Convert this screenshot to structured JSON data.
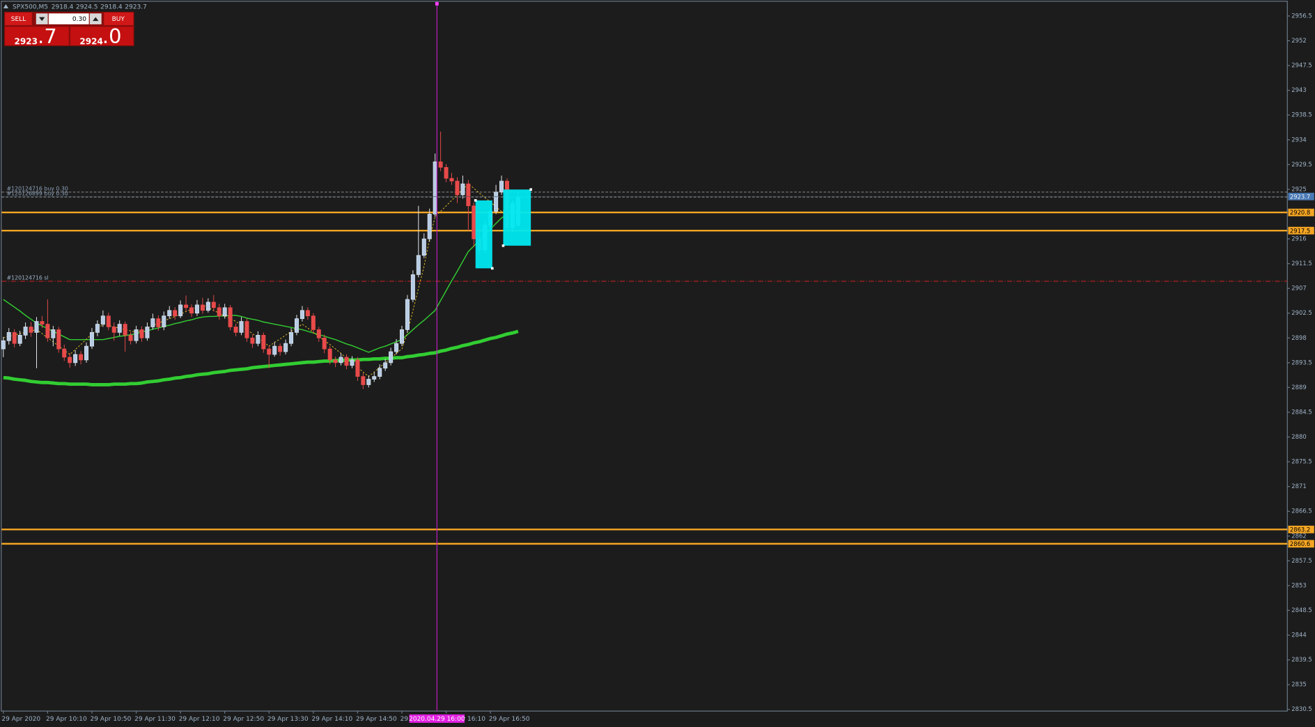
{
  "header": {
    "symbol": "SPX500,M5"
  },
  "trade_panel": {
    "sell": "SELL",
    "lot": "0.30",
    "buy": "BUY",
    "bid_main": "2923",
    "bid_frac": ".7",
    "ask_main": "2924",
    "ask_frac": ".0"
  },
  "chart_data": {
    "type": "candlestick",
    "categories": [
      "29 Apr 2020",
      null,
      null,
      null,
      null,
      null,
      null,
      null,
      "29 Apr 10:10",
      null,
      null,
      null,
      null,
      null,
      null,
      null,
      "29 Apr 10:50",
      null,
      null,
      null,
      null,
      null,
      null,
      null,
      "29 Apr 11:30",
      null,
      null,
      null,
      null,
      null,
      null,
      null,
      "29 Apr 12:10",
      null,
      null,
      null,
      null,
      null,
      null,
      null,
      "29 Apr 12:50",
      null,
      null,
      null,
      null,
      null,
      null,
      null,
      "29 Apr 13:30",
      null,
      null,
      null,
      null,
      null,
      null,
      null,
      "29 Apr 14:10",
      null,
      null,
      null,
      null,
      null,
      null,
      null,
      "29 Apr 14:50",
      null,
      null,
      null,
      null,
      null,
      null,
      null,
      "29 Apr 15:30",
      null,
      null,
      null,
      null,
      null,
      null,
      null,
      "29 Apr 16:10",
      null,
      null,
      null,
      null,
      null,
      null,
      null,
      "29 Apr 16:50",
      null,
      null,
      null,
      null,
      null
    ],
    "candles": [
      [
        2896,
        2898.2,
        2894.5,
        2897.5
      ],
      [
        2897.5,
        2899.8,
        2896.8,
        2899
      ],
      [
        2899,
        2899.6,
        2896.3,
        2897
      ],
      [
        2897,
        2899.3,
        2896.5,
        2898.5
      ],
      [
        2898.5,
        2900.8,
        2897.8,
        2900
      ],
      [
        2900,
        2900.9,
        2898.2,
        2899
      ],
      [
        2899,
        2901.8,
        2892.5,
        2901
      ],
      [
        2901,
        2902,
        2899.8,
        2900.5
      ],
      [
        2900.5,
        2905,
        2897.3,
        2898
      ],
      [
        2898,
        2900.2,
        2896.5,
        2899.5
      ],
      [
        2899.5,
        2900,
        2895.3,
        2896
      ],
      [
        2896,
        2896.8,
        2893.8,
        2894.5
      ],
      [
        2894.5,
        2895.2,
        2892.6,
        2893.5
      ],
      [
        2893.5,
        2895.8,
        2892.9,
        2895
      ],
      [
        2895,
        2895.6,
        2893.2,
        2894
      ],
      [
        2894,
        2897.2,
        2893.5,
        2896.5
      ],
      [
        2896.5,
        2899.8,
        2896,
        2899
      ],
      [
        2899,
        2901.2,
        2898.3,
        2900.5
      ],
      [
        2900.5,
        2903,
        2900,
        2902
      ],
      [
        2902,
        2902.6,
        2899.4,
        2900
      ],
      [
        2900,
        2900.8,
        2897.5,
        2899
      ],
      [
        2899,
        2901.2,
        2898.4,
        2900.5
      ],
      [
        2900.5,
        2901,
        2895.5,
        2898.5
      ],
      [
        2898.5,
        2899.1,
        2896.8,
        2897.5
      ],
      [
        2897.5,
        2900.2,
        2897,
        2899.5
      ],
      [
        2899.5,
        2900.1,
        2897.3,
        2898
      ],
      [
        2898,
        2900.8,
        2897.5,
        2900
      ],
      [
        2900,
        2902.4,
        2899.5,
        2901.5
      ],
      [
        2901.5,
        2902.1,
        2899.3,
        2900
      ],
      [
        2900,
        2902.8,
        2899.4,
        2902
      ],
      [
        2902,
        2903.8,
        2901.5,
        2903
      ],
      [
        2903,
        2903.6,
        2901.3,
        2902
      ],
      [
        2902,
        2904.8,
        2901.6,
        2904
      ],
      [
        2904,
        2905.7,
        2902.9,
        2903.5
      ],
      [
        2903.5,
        2904.1,
        2901.8,
        2902.5
      ],
      [
        2902.5,
        2904.9,
        2902,
        2904
      ],
      [
        2904,
        2905.3,
        2902.4,
        2903
      ],
      [
        2903,
        2905.2,
        2902.6,
        2904.5
      ],
      [
        2904.5,
        2905.8,
        2902.8,
        2903.5
      ],
      [
        2903.5,
        2904.2,
        2901.3,
        2902
      ],
      [
        2902,
        2904.2,
        2901.5,
        2903.5
      ],
      [
        2903.5,
        2904,
        2899.4,
        2900
      ],
      [
        2900,
        2900.6,
        2898.3,
        2899
      ],
      [
        2899,
        2901.8,
        2898.5,
        2901
      ],
      [
        2901,
        2901.5,
        2897.3,
        2898
      ],
      [
        2898,
        2898.6,
        2896.2,
        2897
      ],
      [
        2897,
        2899.2,
        2896.5,
        2898.5
      ],
      [
        2898.5,
        2899,
        2895.3,
        2896
      ],
      [
        2896,
        2896.6,
        2892.5,
        2895
      ],
      [
        2895,
        2897.3,
        2894.6,
        2896.5
      ],
      [
        2896.5,
        2897,
        2894.8,
        2895.5
      ],
      [
        2895.5,
        2897.7,
        2895,
        2897
      ],
      [
        2897,
        2899.8,
        2896.5,
        2899
      ],
      [
        2899,
        2902.2,
        2898.5,
        2901.5
      ],
      [
        2901.5,
        2903.8,
        2901,
        2903
      ],
      [
        2903,
        2903.6,
        2901.3,
        2902
      ],
      [
        2902,
        2902.5,
        2898.8,
        2899.5
      ],
      [
        2899.5,
        2900,
        2897.3,
        2898
      ],
      [
        2898,
        2898.6,
        2895.2,
        2896
      ],
      [
        2896,
        2896.5,
        2893.2,
        2894
      ],
      [
        2894,
        2894.6,
        2892.7,
        2893.5
      ],
      [
        2893.5,
        2895.2,
        2893,
        2894.5
      ],
      [
        2894.5,
        2895,
        2892.3,
        2893
      ],
      [
        2893,
        2894.7,
        2892.5,
        2894
      ],
      [
        2894,
        2894.5,
        2890.2,
        2891
      ],
      [
        2891,
        2891.6,
        2888.7,
        2889.5
      ],
      [
        2889.5,
        2891.2,
        2889,
        2890.5
      ],
      [
        2890.5,
        2891.8,
        2890,
        2891
      ],
      [
        2891,
        2893.2,
        2890.5,
        2892.5
      ],
      [
        2892.5,
        2894.2,
        2892,
        2893.5
      ],
      [
        2893.5,
        2896.2,
        2893,
        2895.5
      ],
      [
        2895.5,
        2897.8,
        2895,
        2897
      ],
      [
        2897,
        2900.2,
        2896.5,
        2899.5
      ],
      [
        2899.5,
        2905.8,
        2899,
        2905
      ],
      [
        2905,
        2910.3,
        2904.5,
        2909.5
      ],
      [
        2909.5,
        2922,
        2909,
        2913
      ],
      [
        2913,
        2917,
        2912.5,
        2916
      ],
      [
        2916,
        2921.5,
        2915.5,
        2920.5
      ],
      [
        2920.5,
        2931.5,
        2920,
        2930
      ],
      [
        2930,
        2935.5,
        2928.3,
        2929
      ],
      [
        2929,
        2929.6,
        2926.3,
        2927
      ],
      [
        2927,
        2928,
        2925.8,
        2926.5
      ],
      [
        2926.5,
        2927.2,
        2922.5,
        2924
      ],
      [
        2924,
        2927.5,
        2923.3,
        2926
      ],
      [
        2926,
        2926.7,
        2917.5,
        2922
      ],
      [
        2922,
        2922.6,
        2914.5,
        2916
      ],
      [
        2916,
        2918.2,
        2913.2,
        2914
      ],
      [
        2914,
        2919.4,
        2913.5,
        2918.5
      ],
      [
        2918.5,
        2922,
        2918,
        2921
      ],
      [
        2921,
        2925.8,
        2920.5,
        2924.5
      ],
      [
        2924.5,
        2927.5,
        2924,
        2926.5
      ],
      [
        2926.5,
        2927,
        2917.3,
        2918
      ],
      [
        2918,
        2923,
        2917.2,
        2922.5
      ],
      [
        2918.4,
        2924.5,
        2918.4,
        2923.7
      ]
    ],
    "moving_averages": [
      {
        "color": "#32cd32",
        "width": 4,
        "dashed": false,
        "values": [
          2890.8,
          2890.7,
          2890.5,
          2890.4,
          2890.3,
          2890.1,
          2890.0,
          2889.9,
          2889.9,
          2889.8,
          2889.7,
          2889.7,
          2889.6,
          2889.6,
          2889.6,
          2889.6,
          2889.5,
          2889.5,
          2889.5,
          2889.5,
          2889.6,
          2889.6,
          2889.6,
          2889.7,
          2889.7,
          2889.8,
          2890.0,
          2890.1,
          2890.2,
          2890.4,
          2890.5,
          2890.7,
          2890.8,
          2891.0,
          2891.1,
          2891.3,
          2891.4,
          2891.5,
          2891.7,
          2891.8,
          2891.9,
          2892.1,
          2892.2,
          2892.3,
          2892.4,
          2892.6,
          2892.7,
          2892.8,
          2892.9,
          2893.0,
          2893.1,
          2893.2,
          2893.3,
          2893.4,
          2893.5,
          2893.6,
          2893.6,
          2893.7,
          2893.8,
          2893.8,
          2893.9,
          2893.9,
          2894.0,
          2894.0,
          2894.0,
          2894.1,
          2894.1,
          2894.2,
          2894.2,
          2894.3,
          2894.3,
          2894.4,
          2894.4,
          2894.6,
          2894.7,
          2894.9,
          2895.0,
          2895.2,
          2895.3,
          2895.6,
          2895.8,
          2896.1,
          2896.3,
          2896.6,
          2896.8,
          2897.1,
          2897.3,
          2897.6,
          2897.9,
          2898.1,
          2898.4,
          2898.7,
          2898.9,
          2899.2
        ]
      },
      {
        "color": "#32cd32",
        "width": 1.2,
        "dashed": false,
        "values": [
          2905.0,
          2904.3,
          2903.6,
          2902.9,
          2902.1,
          2901.4,
          2900.7,
          2900.2,
          2899.7,
          2899.2,
          2898.7,
          2898.2,
          2897.7,
          2897.7,
          2897.7,
          2897.7,
          2897.7,
          2897.7,
          2897.7,
          2897.9,
          2898.1,
          2898.3,
          2898.4,
          2898.6,
          2898.8,
          2899.1,
          2899.3,
          2899.6,
          2899.8,
          2900.1,
          2900.3,
          2900.6,
          2900.8,
          2901.1,
          2901.3,
          2901.6,
          2901.8,
          2901.9,
          2901.9,
          2902.0,
          2902.0,
          2902.1,
          2902.1,
          2901.9,
          2901.6,
          2901.4,
          2901.2,
          2900.9,
          2900.7,
          2900.5,
          2900.3,
          2900.1,
          2899.9,
          2899.7,
          2899.5,
          2899.2,
          2898.9,
          2898.6,
          2898.3,
          2898.0,
          2897.7,
          2897.3,
          2896.9,
          2896.6,
          2896.2,
          2895.8,
          2895.4,
          2895.8,
          2896.2,
          2896.5,
          2896.9,
          2897.3,
          2897.7,
          2898.6,
          2899.5,
          2900.4,
          2901.2,
          2902.1,
          2903.0,
          2904.8,
          2906.6,
          2908.4,
          2910.1,
          2911.9,
          2913.7,
          2914.7,
          2915.7,
          2916.8,
          2917.8,
          2918.8,
          2919.8,
          2920.4,
          2921.0,
          2921.6
        ]
      },
      {
        "color": "#e6c229",
        "width": 0.8,
        "dashed": true,
        "values": [
          2898.0,
          2898.3,
          2898.5,
          2898.8,
          2899.0,
          2899.3,
          2899.5,
          2898.8,
          2898.0,
          2897.3,
          2896.5,
          2895.8,
          2895.0,
          2895.9,
          2896.8,
          2897.8,
          2898.7,
          2899.6,
          2900.5,
          2900.3,
          2900.0,
          2899.8,
          2899.5,
          2899.3,
          2899.0,
          2899.4,
          2899.8,
          2900.3,
          2900.7,
          2901.1,
          2901.5,
          2901.9,
          2902.3,
          2902.8,
          2903.2,
          2903.6,
          2904.0,
          2903.5,
          2903.0,
          2902.5,
          2902.0,
          2901.5,
          2901.0,
          2900.3,
          2899.5,
          2898.8,
          2898.0,
          2897.3,
          2896.5,
          2897.2,
          2897.8,
          2898.5,
          2899.2,
          2899.8,
          2900.5,
          2899.8,
          2899.0,
          2898.3,
          2897.5,
          2896.8,
          2896.0,
          2895.2,
          2894.3,
          2893.5,
          2892.7,
          2891.8,
          2891.0,
          2891.8,
          2892.7,
          2893.5,
          2894.3,
          2895.2,
          2896.0,
          2899.0,
          2903.0,
          2907.0,
          2911.0,
          2916.0,
          2920.0,
          2921.0,
          2922.0,
          2923.0,
          2924.0,
          2925.0,
          2926.0,
          2925.2,
          2924.3,
          2923.5,
          2922.7,
          2921.8,
          2921.0,
          2921.5,
          2922.0,
          2922.5
        ]
      }
    ],
    "ylim": [
      2830.2,
      2959.1
    ],
    "yticks": [
      {
        "value": 2830.5,
        "label": "2830.5"
      },
      2835,
      2839.5,
      2844,
      2848.5,
      2853,
      2857.5,
      2862,
      2866.5,
      2871,
      2875.5,
      2880,
      2884.5,
      2889,
      2893.5,
      2898,
      2902.5,
      2907,
      2911.5,
      2916,
      2925,
      2929.5,
      2934,
      2938.5,
      2943,
      2947.5,
      2952,
      2956.5
    ],
    "levels": [
      {
        "value": 2920.8,
        "color": "#f5a623"
      },
      {
        "value": 2917.5,
        "color": "#f5a623"
      },
      {
        "value": 2863.2,
        "color": "#f5a623"
      },
      {
        "value": 2860.6,
        "color": "#f5a623"
      }
    ],
    "orders": [
      {
        "label": "#120124716 buy 0.30",
        "value": 2924.5,
        "color": "#8c8c8c"
      },
      {
        "label": "#120126899 buy 0.30",
        "value": 2923.6,
        "color": "#8c8c8c"
      },
      {
        "label": "#120124716 sl",
        "value": 2908.3,
        "color": "#d02020"
      }
    ],
    "crosshair_label": "2020.04.29 16:00"
  }
}
